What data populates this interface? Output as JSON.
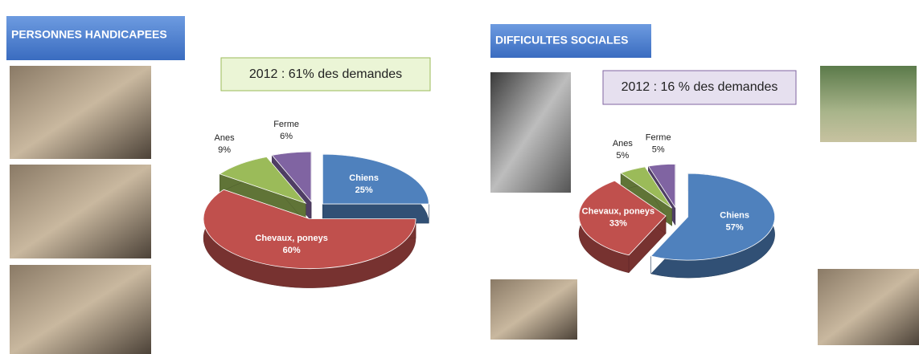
{
  "chart_data": [
    {
      "type": "pie",
      "title": "PERSONNES HANDICAPEES",
      "note": "2012 : 61% des demandes",
      "categories": [
        "Chiens",
        "Chevaux, poneys",
        "Anes",
        "Ferme"
      ],
      "values": [
        25,
        60,
        9,
        6
      ],
      "value_labels": [
        "25%",
        "60%",
        "9%",
        "6%"
      ],
      "colors": [
        "#4f81bd",
        "#c0504d",
        "#9bbb59",
        "#8064a2"
      ]
    },
    {
      "type": "pie",
      "title": "DIFFICULTES SOCIALES",
      "note": "2012 : 16 % des demandes",
      "categories": [
        "Chiens",
        "Chevaux, poneys",
        "Anes",
        "Ferme"
      ],
      "values": [
        57,
        33,
        5,
        5
      ],
      "value_labels": [
        "57%",
        "33%",
        "5%",
        "5%"
      ],
      "colors": [
        "#4f81bd",
        "#c0504d",
        "#9bbb59",
        "#8064a2"
      ]
    }
  ]
}
